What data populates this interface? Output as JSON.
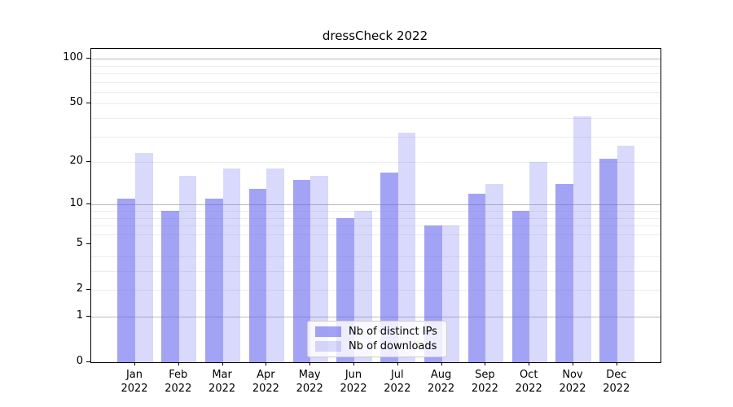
{
  "figure": {
    "title": "dressCheck 2022"
  },
  "chart_data": {
    "type": "bar",
    "title": "dressCheck 2022",
    "categories": [
      "Jan 2022",
      "Feb 2022",
      "Mar 2022",
      "Apr 2022",
      "May 2022",
      "Jun 2022",
      "Jul 2022",
      "Aug 2022",
      "Sep 2022",
      "Oct 2022",
      "Nov 2022",
      "Dec 2022"
    ],
    "series": [
      {
        "name": "Nb of distinct IPs",
        "values": [
          11,
          9,
          11,
          13,
          15,
          8,
          17,
          7,
          12,
          9,
          14,
          21
        ],
        "base_color": "#6666ee",
        "alpha": 0.6
      },
      {
        "name": "Nb of downloads",
        "values": [
          23,
          16,
          18,
          18,
          16,
          9,
          32,
          7,
          14,
          20,
          41,
          26
        ],
        "base_color": "#6666ee",
        "alpha": 0.25
      }
    ],
    "xlabel": "",
    "ylabel": "",
    "y_scale": "log10(1+x)",
    "y_ticks": [
      0,
      1,
      2,
      5,
      10,
      20,
      50,
      100
    ],
    "major_gridlines": [
      1,
      10,
      100
    ],
    "minor_gridlines": [
      2,
      3,
      4,
      6,
      7,
      8,
      9,
      20,
      30,
      40,
      50,
      60,
      70,
      80,
      90
    ],
    "ylim": [
      0,
      116
    ],
    "grid": true,
    "legend_position": "lower center",
    "colors": {
      "bar_dark": "#a6a6f3",
      "bar_light": "#dcdcfa",
      "major_grid": "#bcbcbc",
      "minor_grid": "#ededed",
      "spine": "#000000"
    }
  },
  "legend": {
    "items": [
      {
        "label": "Nb of distinct IPs"
      },
      {
        "label": "Nb of downloads"
      }
    ]
  }
}
